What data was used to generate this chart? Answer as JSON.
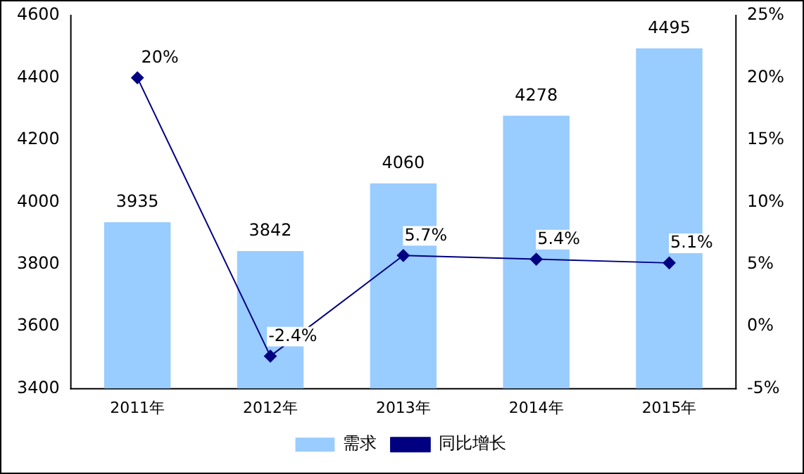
{
  "chart_data": {
    "type": "bar",
    "categories": [
      "2011年",
      "2012年",
      "2013年",
      "2014年",
      "2015年"
    ],
    "series": [
      {
        "name": "需求",
        "color": "#99ccff",
        "values": [
          3935,
          3842,
          4060,
          4278,
          4495
        ],
        "value_labels": [
          "3935",
          "3842",
          "4060",
          "4278",
          "4495"
        ]
      },
      {
        "name": "同比增长",
        "type": "line",
        "axis": "y2",
        "color": "#000080",
        "values": [
          20,
          -2.4,
          5.7,
          5.4,
          5.1
        ],
        "value_labels": [
          "20%",
          "-2.4%",
          "5.7%",
          "5.4%",
          "5.1%"
        ]
      }
    ],
    "ylim": [
      3400,
      4600
    ],
    "yticks": [
      3400,
      3600,
      3800,
      4000,
      4200,
      4400,
      4600
    ],
    "y2lim": [
      -5,
      25
    ],
    "y2ticks": [
      {
        "value": -5,
        "label": "-5%"
      },
      {
        "value": 0,
        "label": "0%"
      },
      {
        "value": 5,
        "label": "5%"
      },
      {
        "value": 10,
        "label": "10%"
      },
      {
        "value": 15,
        "label": "15%"
      },
      {
        "value": 20,
        "label": "20%"
      },
      {
        "value": 25,
        "label": "25%"
      }
    ],
    "grid": false,
    "legend": "bottom",
    "marker": "diamond",
    "line_style": "solid"
  }
}
